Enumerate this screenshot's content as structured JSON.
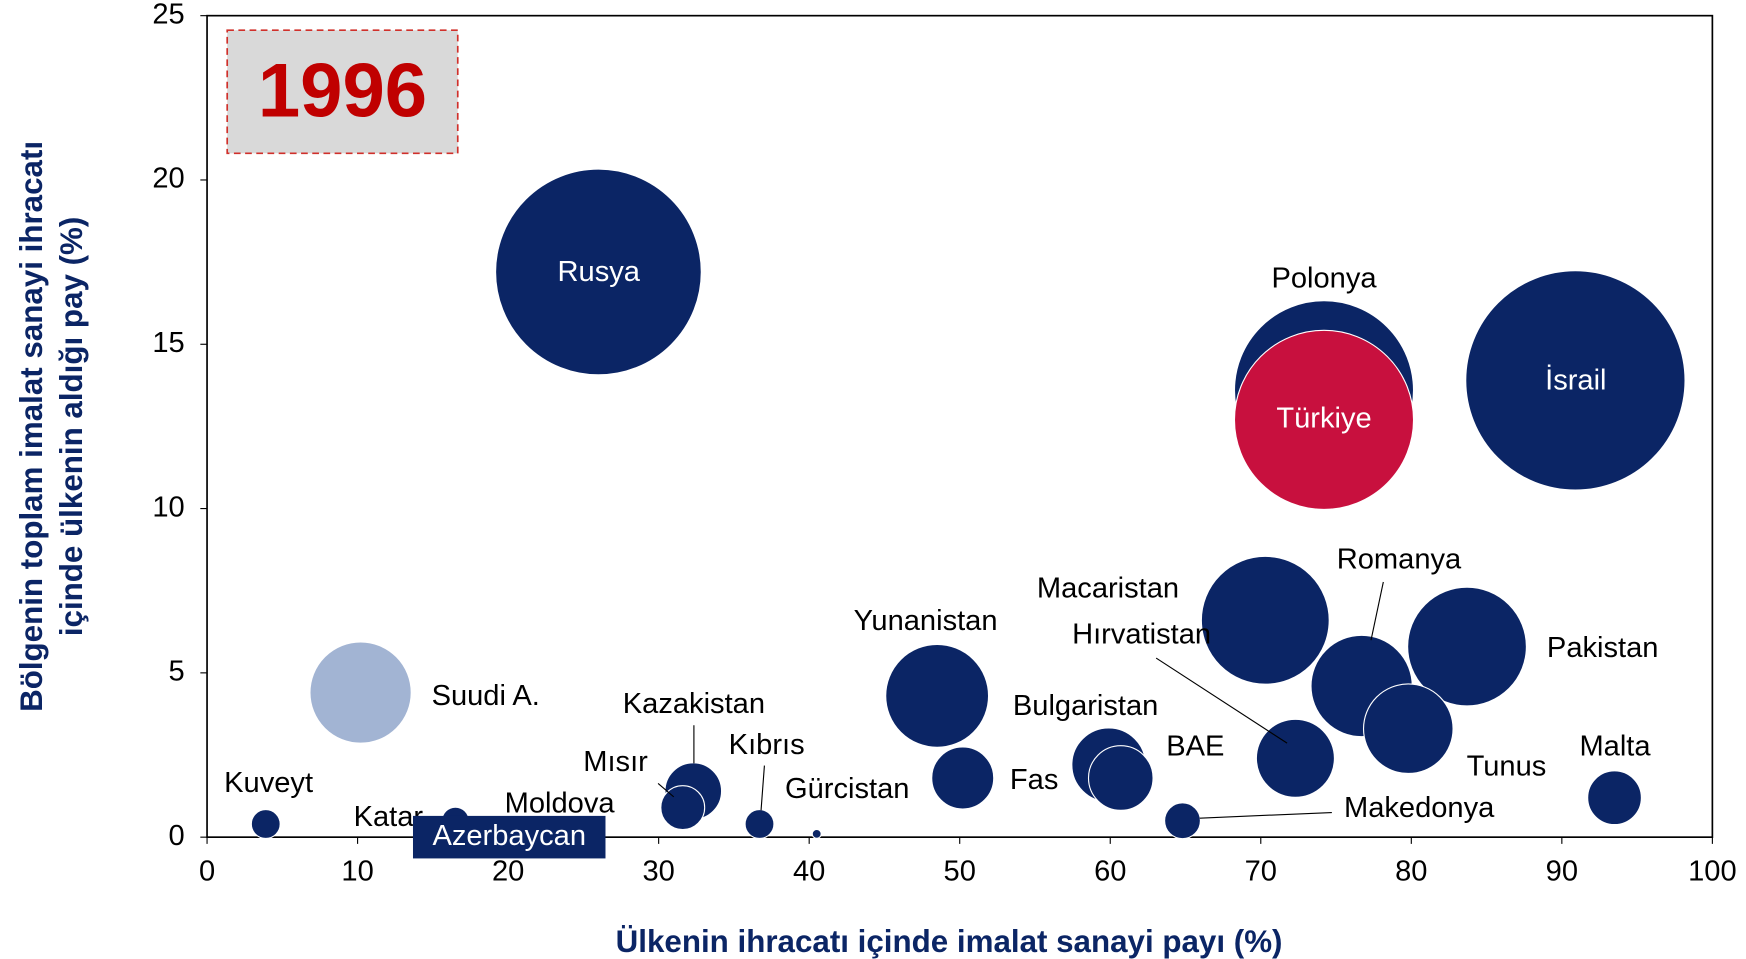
{
  "chart_data": {
    "type": "bubble",
    "annotation": "1996",
    "xlabel": "Ülkenin ihracatı içinde imalat sanayi payı (%)",
    "ylabel": [
      "Bölgenin toplam imalat sanayi ihracatı",
      "içinde ülkenin aldığı pay (%)"
    ],
    "xlim": [
      0,
      100
    ],
    "xticks": [
      0,
      10,
      20,
      30,
      40,
      50,
      60,
      70,
      80,
      90,
      100
    ],
    "ylim": [
      0,
      25
    ],
    "yticks": [
      0,
      5,
      10,
      15,
      20,
      25
    ],
    "labels": [
      "Rusya",
      "Polonya",
      "Türkiye",
      "İsrail",
      "Macaristan",
      "Romanya",
      "Pakistan",
      "Tunus",
      "Hırvatistan",
      "Yunanistan",
      "Bulgaristan",
      "BAE",
      "Fas",
      "Kazakistan",
      "Mısır",
      "Kıbrıs",
      "Gürcistan",
      "Kuveyt",
      "Katar",
      "Suudi A.",
      "Malta",
      "Makedonya",
      "Moldova",
      "Azerbaycan"
    ],
    "x": [
      26.0,
      74.2,
      74.2,
      90.9,
      70.3,
      76.7,
      83.7,
      79.8,
      72.3,
      48.5,
      59.9,
      60.7,
      50.2,
      32.3,
      31.6,
      36.7,
      40.5,
      3.9,
      16.5,
      10.2,
      93.5,
      64.8,
      21.5,
      19.0
    ],
    "y": [
      17.2,
      13.6,
      12.7,
      13.9,
      6.6,
      4.6,
      5.8,
      3.3,
      2.4,
      4.3,
      2.2,
      1.8,
      1.8,
      1.4,
      0.9,
      0.4,
      0.1,
      0.4,
      0.5,
      4.4,
      1.2,
      0.5,
      0.2,
      0.1
    ],
    "sizes": [
      132,
      100,
      100,
      150,
      51,
      32,
      44,
      25,
      19,
      33,
      17,
      13,
      12,
      10,
      6,
      2.6,
      0.25,
      2.6,
      2.3,
      32,
      9,
      4,
      0.25,
      0.25
    ],
    "colors": [
      "#0b2565",
      "#0b2565",
      "#c8103e",
      "#0b2565",
      "#0b2565",
      "#0b2565",
      "#0b2565",
      "#0b2565",
      "#0b2565",
      "#0b2565",
      "#0b2565",
      "#0b2565",
      "#0b2565",
      "#0b2565",
      "#0b2565",
      "#0b2565",
      "#0b2565",
      "#0b2565",
      "#0b2565",
      "#a2b4d3",
      "#0b2565",
      "#0b2565",
      "#0b2565",
      "#0b2565"
    ]
  }
}
